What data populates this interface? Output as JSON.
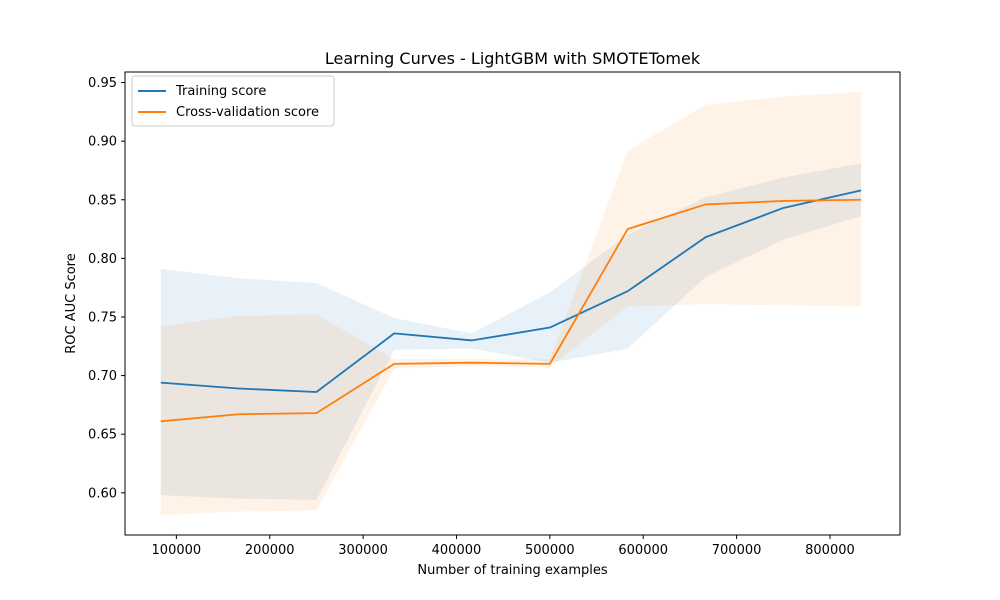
{
  "chart_data": {
    "type": "line",
    "title": "Learning Curves - LightGBM with SMOTETomek",
    "xlabel": "Number of training examples",
    "ylabel": "ROC AUC Score",
    "xlim": [
      45000,
      875000
    ],
    "ylim": [
      0.564,
      0.959
    ],
    "xticks": [
      100000,
      200000,
      300000,
      400000,
      500000,
      600000,
      700000,
      800000
    ],
    "xtick_labels": [
      "100000",
      "200000",
      "300000",
      "400000",
      "500000",
      "600000",
      "700000",
      "800000"
    ],
    "yticks": [
      0.6,
      0.65,
      0.7,
      0.75,
      0.8,
      0.85,
      0.9,
      0.95
    ],
    "ytick_labels": [
      "0.60",
      "0.65",
      "0.70",
      "0.75",
      "0.80",
      "0.85",
      "0.90",
      "0.95"
    ],
    "legend_position": "upper-left",
    "x": [
      83333,
      166667,
      250000,
      333333,
      416667,
      500000,
      583333,
      666667,
      750000,
      833333
    ],
    "series": [
      {
        "name": "Training score",
        "color": "#1f77b4",
        "band_color": "#1f77b4",
        "values": [
          0.694,
          0.689,
          0.686,
          0.736,
          0.73,
          0.741,
          0.772,
          0.818,
          0.843,
          0.858
        ],
        "lower": [
          0.598,
          0.595,
          0.594,
          0.722,
          0.723,
          0.711,
          0.723,
          0.784,
          0.816,
          0.836
        ],
        "upper": [
          0.791,
          0.783,
          0.779,
          0.749,
          0.736,
          0.771,
          0.82,
          0.852,
          0.869,
          0.881
        ]
      },
      {
        "name": "Cross-validation score",
        "color": "#ff7f0e",
        "band_color": "#ff7f0e",
        "values": [
          0.661,
          0.667,
          0.668,
          0.71,
          0.711,
          0.71,
          0.825,
          0.846,
          0.849,
          0.85
        ],
        "lower": [
          0.581,
          0.584,
          0.585,
          0.706,
          0.708,
          0.707,
          0.759,
          0.761,
          0.76,
          0.759
        ],
        "upper": [
          0.742,
          0.751,
          0.752,
          0.714,
          0.714,
          0.714,
          0.892,
          0.931,
          0.938,
          0.942
        ]
      }
    ]
  }
}
